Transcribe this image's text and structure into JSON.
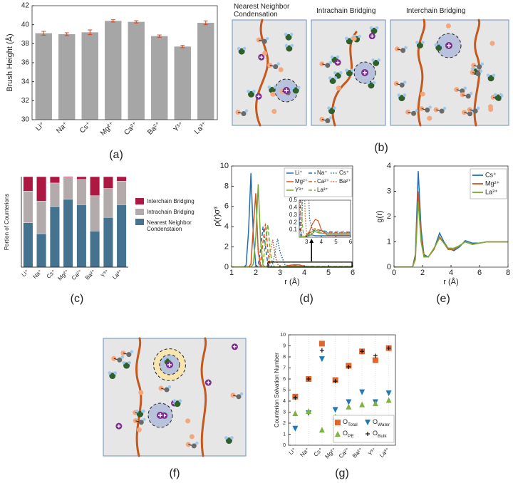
{
  "chart_data": [
    {
      "type": "bar",
      "panel_label": "(a)",
      "y_label": "Brush Height (Å)",
      "categories": [
        "Li⁺",
        "Na⁺",
        "Cs⁺",
        "Mg²⁺",
        "Ca²⁺",
        "Ba²⁺",
        "Y³⁺",
        "La³⁺"
      ],
      "values": [
        39.1,
        39.0,
        39.2,
        40.4,
        40.3,
        38.8,
        37.7,
        40.2
      ],
      "errors": [
        0.2,
        0.15,
        0.25,
        0.12,
        0.12,
        0.12,
        0.12,
        0.2
      ],
      "color": "#a6a6a6",
      "error_color": "#d9401c",
      "ylim": [
        30,
        42
      ],
      "yticks": [
        30,
        32,
        34,
        36,
        38,
        40,
        42
      ]
    },
    {
      "type": "stacked_bar",
      "panel_label": "(c)",
      "y_label": "Portion of Counterions",
      "categories": [
        "Li⁺",
        "Na⁺",
        "Cs⁺",
        "Mg²⁺",
        "Ca²⁺",
        "Ba²⁺",
        "Y³⁺",
        "La³⁺"
      ],
      "series": [
        {
          "name": "Nearest Neighbor Condenstaion",
          "color": "#45728f",
          "values": [
            0.49,
            0.37,
            0.67,
            0.75,
            0.69,
            0.4,
            0.55,
            0.69
          ]
        },
        {
          "name": "Intrachain Bridging",
          "color": "#b3abab",
          "values": [
            0.35,
            0.36,
            0.26,
            0.24,
            0.28,
            0.39,
            0.32,
            0.26
          ]
        },
        {
          "name": "Interchain Bridging",
          "color": "#ad1843",
          "values": [
            0.16,
            0.27,
            0.07,
            0.01,
            0.03,
            0.21,
            0.13,
            0.05
          ]
        }
      ],
      "ylim": [
        0,
        1
      ]
    },
    {
      "type": "line",
      "panel_label": "(d)",
      "y_label": "ρ(r)σ³",
      "x_label": "r (Å)",
      "x": [
        1.0,
        1.5,
        1.6,
        1.7,
        1.8,
        1.9,
        2.0,
        2.1,
        2.2,
        2.3,
        2.4,
        2.5,
        2.6,
        2.7,
        2.8,
        2.9,
        3.0,
        3.2,
        3.4,
        3.6,
        3.8,
        4.0,
        4.4,
        4.8,
        5.2,
        5.6,
        6.0
      ],
      "series": [
        {
          "name": "Li⁺",
          "color": "#1f6fb5",
          "dash": "solid",
          "values": [
            0,
            0,
            0.2,
            3.5,
            9.3,
            3.0,
            0.2,
            0,
            0,
            0,
            0,
            0,
            0,
            0,
            0,
            0.01,
            0.02,
            0.03,
            0.03,
            0.02,
            0.02,
            0.02,
            0.02,
            0.02,
            0.02,
            0.02,
            0.02
          ]
        },
        {
          "name": "Na⁺",
          "color": "#1f6fb5",
          "dash": "dashed",
          "values": [
            0,
            0,
            0,
            0,
            0,
            0,
            0,
            0.2,
            1.8,
            4.0,
            2.0,
            0.3,
            0,
            0,
            0,
            0.01,
            0.03,
            0.06,
            0.08,
            0.1,
            0.1,
            0.09,
            0.08,
            0.07,
            0.07,
            0.07,
            0.07
          ]
        },
        {
          "name": "Cs⁺",
          "color": "#1f6fb5",
          "dash": "dotted",
          "values": [
            0,
            0,
            0,
            0,
            0,
            0,
            0,
            0,
            0,
            0,
            0,
            0,
            0,
            0.3,
            1.5,
            2.8,
            1.5,
            0.25,
            0.1,
            0.08,
            0.09,
            0.08,
            0.06,
            0.06,
            0.06,
            0.06,
            0.06
          ]
        },
        {
          "name": "Mg²⁺",
          "color": "#d95319",
          "dash": "solid",
          "values": [
            0,
            0,
            0,
            0,
            0.3,
            4.0,
            7.3,
            1.5,
            0.1,
            0,
            0,
            0,
            0,
            0,
            0,
            0.01,
            0.03,
            0.08,
            0.18,
            0.24,
            0.22,
            0.1,
            0.03,
            0.03,
            0.03,
            0.03,
            0.03
          ]
        },
        {
          "name": "Ca²⁺",
          "color": "#d95319",
          "dash": "dashed",
          "values": [
            0,
            0,
            0,
            0,
            0,
            0,
            0,
            0,
            0.5,
            2.5,
            4.3,
            1.5,
            0.1,
            0,
            0,
            0,
            0.02,
            0.05,
            0.1,
            0.12,
            0.1,
            0.08,
            0.06,
            0.06,
            0.06,
            0.06,
            0.06
          ]
        },
        {
          "name": "Ba²⁺",
          "color": "#d95319",
          "dash": "dotted",
          "values": [
            0,
            0,
            0,
            0,
            0,
            0,
            0,
            0,
            0,
            0,
            0,
            0.3,
            1.5,
            2.7,
            1.2,
            0.3,
            0.05,
            0.05,
            0.06,
            0.07,
            0.07,
            0.06,
            0.05,
            0.05,
            0.05,
            0.05,
            0.05
          ]
        },
        {
          "name": "Y³⁺",
          "color": "#77ac30",
          "dash": "solid",
          "values": [
            0,
            0,
            0,
            0,
            0,
            0.3,
            3.0,
            8.2,
            2.5,
            0.2,
            0,
            0,
            0,
            0,
            0,
            0,
            0.01,
            0.02,
            0.05,
            0.1,
            0.08,
            0.05,
            0.05,
            0.05,
            0.05,
            0.05,
            0.05
          ]
        },
        {
          "name": "La³⁺",
          "color": "#77ac30",
          "dash": "dashed",
          "values": [
            0,
            0,
            0,
            0,
            0,
            0,
            0,
            0,
            0,
            0.4,
            2.5,
            4.2,
            1.5,
            0.2,
            0,
            0,
            0.02,
            0.05,
            0.08,
            0.07,
            0.06,
            0.05,
            0.05,
            0.05,
            0.05,
            0.05,
            0.05
          ]
        }
      ],
      "xlim": [
        1,
        6
      ],
      "xticks": [
        1,
        2,
        3,
        4,
        5,
        6
      ],
      "ylim": [
        0,
        10
      ],
      "yticks": [
        0,
        2,
        4,
        6,
        8,
        10
      ],
      "inset": {
        "xlim": [
          2.5,
          6
        ],
        "xticks": [
          3,
          4,
          5,
          6
        ],
        "ylim": [
          0,
          0.5
        ],
        "yticks": [
          0.1,
          0.2,
          0.3,
          0.4,
          0.5
        ]
      }
    },
    {
      "type": "line",
      "panel_label": "(e)",
      "y_label": "g(r)",
      "x_label": "r (Å)",
      "x": [
        0,
        1,
        1.3,
        1.5,
        1.7,
        1.9,
        2.1,
        2.4,
        2.8,
        3.2,
        3.5,
        3.8,
        4.2,
        4.6,
        5.0,
        5.5,
        6,
        6.5,
        7,
        7.5,
        8
      ],
      "series": [
        {
          "name": "Cs⁺",
          "color": "#1f6fb5",
          "dash": "solid",
          "values": [
            0,
            0,
            0,
            0.5,
            3.8,
            1.5,
            0.5,
            0.4,
            0.7,
            1.35,
            1.0,
            0.75,
            0.65,
            0.8,
            1.05,
            0.95,
            0.95,
            1.0,
            1.0,
            1.0,
            1.0
          ]
        },
        {
          "name": "Mg²⁺",
          "color": "#d95319",
          "dash": "solid",
          "values": [
            0,
            0,
            0,
            0.4,
            3.0,
            1.2,
            0.45,
            0.4,
            0.7,
            1.2,
            0.95,
            0.7,
            0.7,
            0.85,
            1.0,
            0.9,
            0.95,
            1.0,
            1.0,
            1.0,
            1.0
          ]
        },
        {
          "name": "La³⁺",
          "color": "#77ac30",
          "dash": "solid",
          "values": [
            0,
            0,
            0,
            0.3,
            2.6,
            1.0,
            0.4,
            0.4,
            0.75,
            1.15,
            0.95,
            0.75,
            0.75,
            0.85,
            1.0,
            0.9,
            0.95,
            1.0,
            1.0,
            1.0,
            1.0
          ]
        }
      ],
      "xlim": [
        0,
        8
      ],
      "xticks": [
        0,
        2,
        4,
        6,
        8
      ],
      "ylim": [
        0,
        4
      ],
      "yticks": [
        0,
        1,
        2,
        3,
        4
      ]
    },
    {
      "type": "scatter",
      "panel_label": "(g)",
      "y_label": "Counterion Solvation Number",
      "categories": [
        "Li⁺",
        "Na⁺",
        "Cs⁺",
        "Mg²⁺",
        "Ca²⁺",
        "Ba²⁺",
        "Y³⁺",
        "La³⁺"
      ],
      "series": [
        {
          "name": "O",
          "subscript": "Total",
          "marker": "square",
          "color": "#e0662e",
          "values": [
            4.4,
            6.0,
            9.2,
            5.9,
            7.2,
            8.5,
            7.7,
            8.8
          ]
        },
        {
          "name": "O",
          "subscript": "Water",
          "marker": "triangle-down",
          "color": "#1f77b4",
          "values": [
            1.5,
            2.9,
            7.8,
            3.2,
            3.9,
            4.8,
            3.9,
            4.7
          ]
        },
        {
          "name": "O",
          "subscript": "PE",
          "marker": "triangle-up",
          "color": "#7cb342",
          "values": [
            2.9,
            3.1,
            1.4,
            2.6,
            3.5,
            3.7,
            3.8,
            4.1
          ]
        },
        {
          "name": "O",
          "subscript": "Bulk",
          "marker": "plus",
          "color": "#111111",
          "values": [
            4.3,
            6.0,
            8.6,
            5.8,
            7.1,
            8.5,
            8.1,
            8.8
          ]
        }
      ],
      "ylim": [
        0,
        10
      ],
      "yticks": [
        0,
        1,
        2,
        3,
        4,
        5,
        6,
        7,
        8,
        9,
        10
      ]
    }
  ],
  "schematics": [
    {
      "panel_label": "(b)",
      "titles": [
        "Nearest Neighbor Condensation",
        "Intrachain Bridging",
        "Interchain Bridging"
      ]
    },
    {
      "panel_label": "(f)"
    }
  ]
}
